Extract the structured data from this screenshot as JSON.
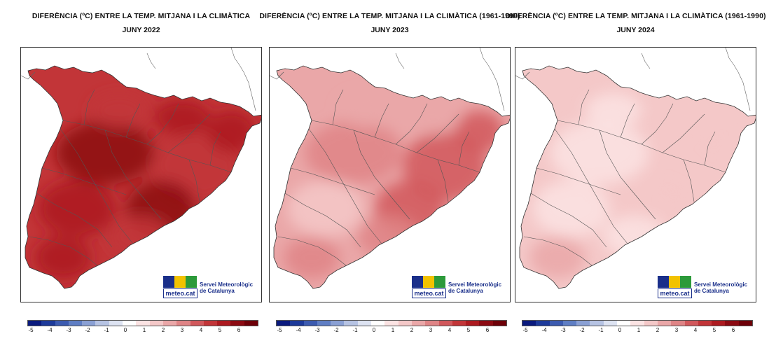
{
  "panels": [
    {
      "title": "DIFERÈNCIA (ºC) ENTRE LA TEMP. MITJANA I LA CLIMÀTICA",
      "subtitle": "JUNY 2022",
      "level": 4.2
    },
    {
      "title": "DIFERÈNCIA (ºC) ENTRE LA TEMP. MITJANA I LA CLIMÀTICA (1961-1990)",
      "subtitle": "JUNY 2023",
      "level": 2.0
    },
    {
      "title": "DIFERÈNCIA (ºC) ENTRE LA TEMP. MITJANA I LA CLIMÀTICA (1961-1990)",
      "subtitle": "JUNY 2024",
      "level": 0.9
    }
  ],
  "logo": {
    "wordmark": "meteo.cat",
    "line1": "Servei Meteorològic",
    "line2": "de Catalunya"
  },
  "legend": {
    "ticks": [
      "-5",
      "-4",
      "-3",
      "-2",
      "-1",
      "0",
      "1",
      "2",
      "3",
      "4",
      "5",
      "6"
    ],
    "colors": [
      "#0a1a7e",
      "#1d3a9a",
      "#3c5bb0",
      "#5f7ec4",
      "#8aa0d4",
      "#b6c3e3",
      "#dde3f2",
      "#ffffff",
      "#fbe3e3",
      "#f4c8c8",
      "#eaa7a8",
      "#df8486",
      "#d1585c",
      "#c23538",
      "#ad1a20",
      "#8c0a12",
      "#6e0008"
    ]
  }
}
